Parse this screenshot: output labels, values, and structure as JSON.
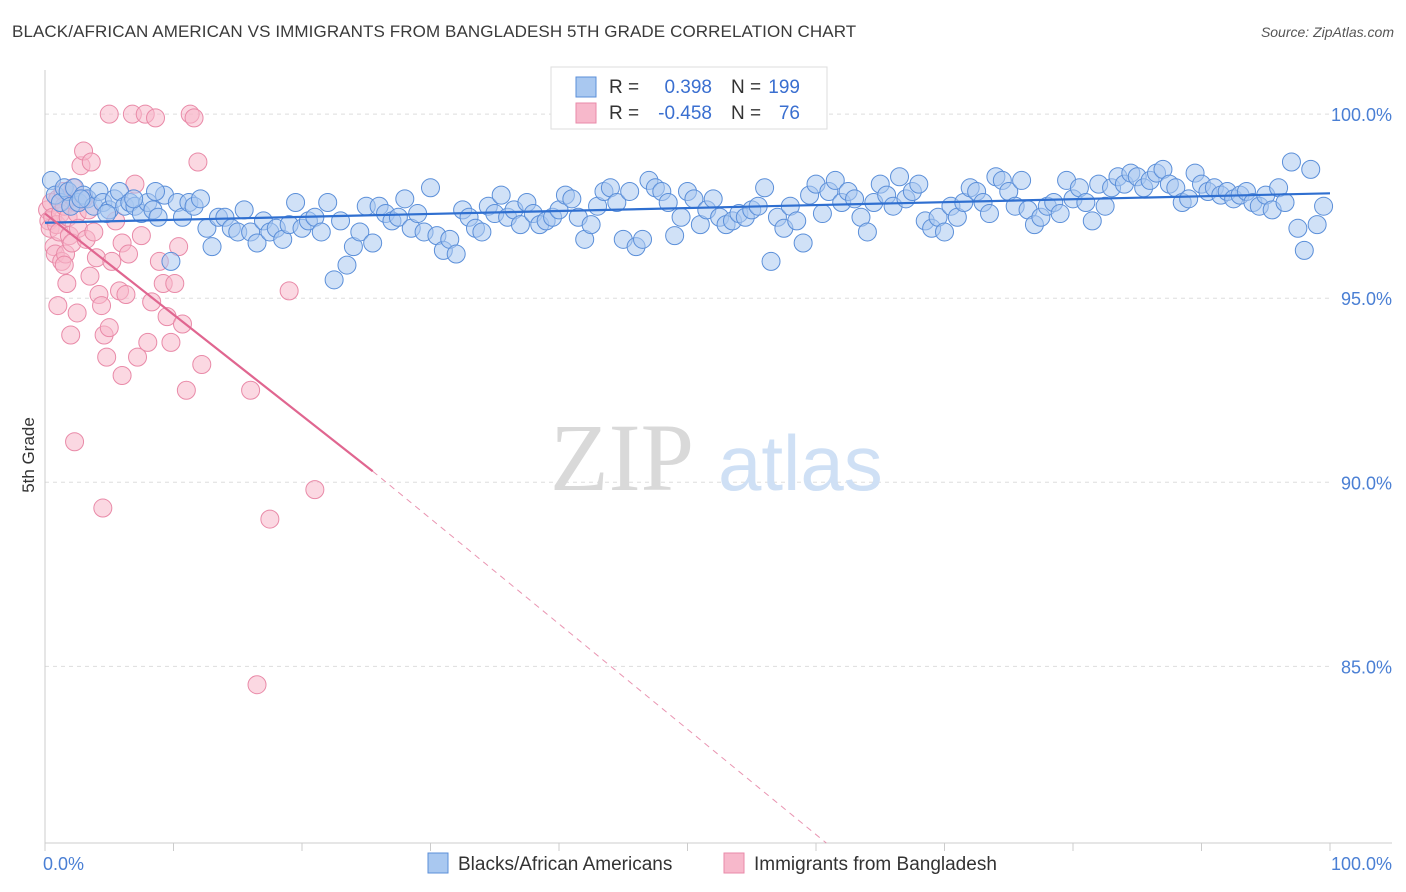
{
  "title": "BLACK/AFRICAN AMERICAN VS IMMIGRANTS FROM BANGLADESH 5TH GRADE CORRELATION CHART",
  "source": "Source: ZipAtlas.com",
  "watermark": {
    "zip": "ZIP",
    "atlas": "atlas"
  },
  "colors": {
    "blue_fill": "#a9c8f0",
    "blue_stroke": "#5b8fd9",
    "blue_line": "#2f6fd0",
    "pink_fill": "#f7b8cb",
    "pink_stroke": "#e98aa8",
    "pink_line": "#e06690",
    "axis_text": "#4a7fd4",
    "grid": "#dddddd"
  },
  "chart_data": {
    "type": "scatter",
    "xlabel": "",
    "ylabel": "5th Grade",
    "xlim": [
      0,
      100
    ],
    "ylim": [
      80.2,
      101.2
    ],
    "x_tick_labels": [
      "0.0%",
      "100.0%"
    ],
    "y_ticks": [
      {
        "value": 100,
        "label": "100.0%"
      },
      {
        "value": 95,
        "label": "95.0%"
      },
      {
        "value": 90,
        "label": "90.0%"
      },
      {
        "value": 85,
        "label": "85.0%"
      }
    ],
    "grid": true,
    "legend_top": [
      {
        "r_label": "R =",
        "r_value": "0.398",
        "n_label": "N =",
        "n_value": "199"
      },
      {
        "r_label": "R =",
        "r_value": "-0.458",
        "n_label": "N =",
        "n_value": "76"
      }
    ],
    "legend_bottom": [
      "Blacks/African Americans",
      "Immigrants from Bangladesh"
    ],
    "series": [
      {
        "name": "Blacks/African Americans",
        "trend": {
          "x": [
            0,
            100
          ],
          "y": [
            97.05,
            97.85
          ]
        },
        "points": [
          [
            0.5,
            98.2
          ],
          [
            0.8,
            97.8
          ],
          [
            1.2,
            97.6
          ],
          [
            1.5,
            98.0
          ],
          [
            1.8,
            97.9
          ],
          [
            2.0,
            97.5
          ],
          [
            2.3,
            98.0
          ],
          [
            2.6,
            97.6
          ],
          [
            3.0,
            97.8
          ],
          [
            3.3,
            97.7
          ],
          [
            3.8,
            97.5
          ],
          [
            4.2,
            97.9
          ],
          [
            4.5,
            97.6
          ],
          [
            5.0,
            97.4
          ],
          [
            5.4,
            97.7
          ],
          [
            5.8,
            97.9
          ],
          [
            6.2,
            97.5
          ],
          [
            6.6,
            97.6
          ],
          [
            7.0,
            97.5
          ],
          [
            7.5,
            97.3
          ],
          [
            8.0,
            97.6
          ],
          [
            8.4,
            97.4
          ],
          [
            8.8,
            97.2
          ],
          [
            9.3,
            97.8
          ],
          [
            9.8,
            96.0
          ],
          [
            10.3,
            97.6
          ],
          [
            10.7,
            97.2
          ],
          [
            11.2,
            97.6
          ],
          [
            11.6,
            97.5
          ],
          [
            12.1,
            97.7
          ],
          [
            12.6,
            96.9
          ],
          [
            13.0,
            96.4
          ],
          [
            13.5,
            97.2
          ],
          [
            14.0,
            97.2
          ],
          [
            14.5,
            96.9
          ],
          [
            15.0,
            96.8
          ],
          [
            15.5,
            97.4
          ],
          [
            16.0,
            96.8
          ],
          [
            16.5,
            96.5
          ],
          [
            17.0,
            97.1
          ],
          [
            17.5,
            96.8
          ],
          [
            18.0,
            96.9
          ],
          [
            18.5,
            96.6
          ],
          [
            19.0,
            97.0
          ],
          [
            19.5,
            97.6
          ],
          [
            20.0,
            96.9
          ],
          [
            20.5,
            97.1
          ],
          [
            21.0,
            97.2
          ],
          [
            21.5,
            96.8
          ],
          [
            22.0,
            97.6
          ],
          [
            22.5,
            95.5
          ],
          [
            23.0,
            97.1
          ],
          [
            23.5,
            95.9
          ],
          [
            24.0,
            96.4
          ],
          [
            24.5,
            96.8
          ],
          [
            25.0,
            97.5
          ],
          [
            25.5,
            96.5
          ],
          [
            26.0,
            97.5
          ],
          [
            26.5,
            97.3
          ],
          [
            27.0,
            97.1
          ],
          [
            27.5,
            97.2
          ],
          [
            28.0,
            97.7
          ],
          [
            28.5,
            96.9
          ],
          [
            29.0,
            97.3
          ],
          [
            29.5,
            96.8
          ],
          [
            30.0,
            98.0
          ],
          [
            30.5,
            96.7
          ],
          [
            31.0,
            96.3
          ],
          [
            31.5,
            96.6
          ],
          [
            32.0,
            96.2
          ],
          [
            32.5,
            97.4
          ],
          [
            33.0,
            97.2
          ],
          [
            33.5,
            96.9
          ],
          [
            34.0,
            96.8
          ],
          [
            34.5,
            97.5
          ],
          [
            35.0,
            97.3
          ],
          [
            35.5,
            97.8
          ],
          [
            36.0,
            97.2
          ],
          [
            36.5,
            97.4
          ],
          [
            37.0,
            97.0
          ],
          [
            37.5,
            97.6
          ],
          [
            38.0,
            97.3
          ],
          [
            38.5,
            97.0
          ],
          [
            39.0,
            97.1
          ],
          [
            39.5,
            97.2
          ],
          [
            40.0,
            97.4
          ],
          [
            40.5,
            97.8
          ],
          [
            41.0,
            97.7
          ],
          [
            41.5,
            97.2
          ],
          [
            42.0,
            96.6
          ],
          [
            42.5,
            97.0
          ],
          [
            43.0,
            97.5
          ],
          [
            43.5,
            97.9
          ],
          [
            44.0,
            98.0
          ],
          [
            44.5,
            97.6
          ],
          [
            45.0,
            96.6
          ],
          [
            45.5,
            97.9
          ],
          [
            46.0,
            96.4
          ],
          [
            46.5,
            96.6
          ],
          [
            47.0,
            98.2
          ],
          [
            47.5,
            98.0
          ],
          [
            48.0,
            97.9
          ],
          [
            48.5,
            97.6
          ],
          [
            49.0,
            96.7
          ],
          [
            49.5,
            97.2
          ],
          [
            50.0,
            97.9
          ],
          [
            50.5,
            97.7
          ],
          [
            51.0,
            97.0
          ],
          [
            51.5,
            97.4
          ],
          [
            52.0,
            97.7
          ],
          [
            52.5,
            97.2
          ],
          [
            53.0,
            97.0
          ],
          [
            53.5,
            97.1
          ],
          [
            54.0,
            97.3
          ],
          [
            54.5,
            97.2
          ],
          [
            55.0,
            97.4
          ],
          [
            55.5,
            97.5
          ],
          [
            56.0,
            98.0
          ],
          [
            56.5,
            96.0
          ],
          [
            57.0,
            97.2
          ],
          [
            57.5,
            96.9
          ],
          [
            58.0,
            97.5
          ],
          [
            58.5,
            97.1
          ],
          [
            59.0,
            96.5
          ],
          [
            59.5,
            97.8
          ],
          [
            60.0,
            98.1
          ],
          [
            60.5,
            97.3
          ],
          [
            61.0,
            97.9
          ],
          [
            61.5,
            98.2
          ],
          [
            62.0,
            97.6
          ],
          [
            62.5,
            97.9
          ],
          [
            63.0,
            97.7
          ],
          [
            63.5,
            97.2
          ],
          [
            64.0,
            96.8
          ],
          [
            64.5,
            97.6
          ],
          [
            65.0,
            98.1
          ],
          [
            65.5,
            97.8
          ],
          [
            66.0,
            97.5
          ],
          [
            66.5,
            98.3
          ],
          [
            67.0,
            97.7
          ],
          [
            67.5,
            97.9
          ],
          [
            68.0,
            98.1
          ],
          [
            68.5,
            97.1
          ],
          [
            69.0,
            96.9
          ],
          [
            69.5,
            97.2
          ],
          [
            70.0,
            96.8
          ],
          [
            70.5,
            97.5
          ],
          [
            71.0,
            97.2
          ],
          [
            71.5,
            97.6
          ],
          [
            72.0,
            98.0
          ],
          [
            72.5,
            97.9
          ],
          [
            73.0,
            97.6
          ],
          [
            73.5,
            97.3
          ],
          [
            74.0,
            98.3
          ],
          [
            74.5,
            98.2
          ],
          [
            75.0,
            97.9
          ],
          [
            75.5,
            97.5
          ],
          [
            76.0,
            98.2
          ],
          [
            76.5,
            97.4
          ],
          [
            77.0,
            97.0
          ],
          [
            77.5,
            97.2
          ],
          [
            78.0,
            97.5
          ],
          [
            78.5,
            97.6
          ],
          [
            79.0,
            97.3
          ],
          [
            79.5,
            98.2
          ],
          [
            80.0,
            97.7
          ],
          [
            80.5,
            98.0
          ],
          [
            81.0,
            97.6
          ],
          [
            81.5,
            97.1
          ],
          [
            82.0,
            98.1
          ],
          [
            82.5,
            97.5
          ],
          [
            83.0,
            98.0
          ],
          [
            83.5,
            98.3
          ],
          [
            84.0,
            98.1
          ],
          [
            84.5,
            98.4
          ],
          [
            85.0,
            98.3
          ],
          [
            85.5,
            98.0
          ],
          [
            86.0,
            98.2
          ],
          [
            86.5,
            98.4
          ],
          [
            87.0,
            98.5
          ],
          [
            87.5,
            98.1
          ],
          [
            88.0,
            98.0
          ],
          [
            88.5,
            97.6
          ],
          [
            89.0,
            97.7
          ],
          [
            89.5,
            98.4
          ],
          [
            90.0,
            98.1
          ],
          [
            90.5,
            97.9
          ],
          [
            91.0,
            98.0
          ],
          [
            91.5,
            97.8
          ],
          [
            92.0,
            97.9
          ],
          [
            92.5,
            97.7
          ],
          [
            93.0,
            97.8
          ],
          [
            93.5,
            97.9
          ],
          [
            94.0,
            97.6
          ],
          [
            94.5,
            97.5
          ],
          [
            95.0,
            97.8
          ],
          [
            95.5,
            97.4
          ],
          [
            96.0,
            98.0
          ],
          [
            96.5,
            97.6
          ],
          [
            97.0,
            98.7
          ],
          [
            97.5,
            96.9
          ],
          [
            98.0,
            96.3
          ],
          [
            98.5,
            98.5
          ],
          [
            99.0,
            97.0
          ],
          [
            99.5,
            97.5
          ],
          [
            2.8,
            97.7
          ],
          [
            4.8,
            97.3
          ],
          [
            6.9,
            97.7
          ],
          [
            8.6,
            97.9
          ]
        ]
      },
      {
        "name": "Immigrants from Bangladesh",
        "trend": {
          "x": [
            0,
            25.5
          ],
          "y": [
            97.3,
            90.3
          ]
        },
        "trend_dashed": {
          "x": [
            25.5,
            60.8
          ],
          "y": [
            90.3,
            80.2
          ]
        },
        "points": [
          [
            0.2,
            97.4
          ],
          [
            0.3,
            97.1
          ],
          [
            0.4,
            96.9
          ],
          [
            0.5,
            97.6
          ],
          [
            0.6,
            97.2
          ],
          [
            0.7,
            96.4
          ],
          [
            0.8,
            96.2
          ],
          [
            0.9,
            97.0
          ],
          [
            1.0,
            97.7
          ],
          [
            1.1,
            96.8
          ],
          [
            1.2,
            97.3
          ],
          [
            1.3,
            96.0
          ],
          [
            1.4,
            97.9
          ],
          [
            1.5,
            97.5
          ],
          [
            1.6,
            96.2
          ],
          [
            1.7,
            95.4
          ],
          [
            1.8,
            97.2
          ],
          [
            1.9,
            96.7
          ],
          [
            2.0,
            97.8
          ],
          [
            2.1,
            96.5
          ],
          [
            2.2,
            98.0
          ],
          [
            2.4,
            97.6
          ],
          [
            2.5,
            97.3
          ],
          [
            2.6,
            96.9
          ],
          [
            2.8,
            98.6
          ],
          [
            3.0,
            99.0
          ],
          [
            3.2,
            96.6
          ],
          [
            3.4,
            97.4
          ],
          [
            3.6,
            98.7
          ],
          [
            3.8,
            96.8
          ],
          [
            4.0,
            96.1
          ],
          [
            4.2,
            95.1
          ],
          [
            4.4,
            94.8
          ],
          [
            4.6,
            94.0
          ],
          [
            4.8,
            93.4
          ],
          [
            5.0,
            94.2
          ],
          [
            5.2,
            96.0
          ],
          [
            5.5,
            97.1
          ],
          [
            5.8,
            95.2
          ],
          [
            6.0,
            96.5
          ],
          [
            6.3,
            95.1
          ],
          [
            6.5,
            96.2
          ],
          [
            6.8,
            100.0
          ],
          [
            7.2,
            93.4
          ],
          [
            7.5,
            96.7
          ],
          [
            7.8,
            100.0
          ],
          [
            8.0,
            93.8
          ],
          [
            8.3,
            94.9
          ],
          [
            8.6,
            99.9
          ],
          [
            8.9,
            96.0
          ],
          [
            9.2,
            95.4
          ],
          [
            9.5,
            94.5
          ],
          [
            9.8,
            93.8
          ],
          [
            10.1,
            95.4
          ],
          [
            10.4,
            96.4
          ],
          [
            10.7,
            94.3
          ],
          [
            11.0,
            92.5
          ],
          [
            11.3,
            100.0
          ],
          [
            11.6,
            99.9
          ],
          [
            11.9,
            98.7
          ],
          [
            12.2,
            93.2
          ],
          [
            1.0,
            94.8
          ],
          [
            1.5,
            95.9
          ],
          [
            2.0,
            94.0
          ],
          [
            2.3,
            91.1
          ],
          [
            2.5,
            94.6
          ],
          [
            3.0,
            97.7
          ],
          [
            3.5,
            95.6
          ],
          [
            4.5,
            89.3
          ],
          [
            5.0,
            100.0
          ],
          [
            6.0,
            92.9
          ],
          [
            7.0,
            98.1
          ],
          [
            16.0,
            92.5
          ],
          [
            17.5,
            89.0
          ],
          [
            19.0,
            95.2
          ],
          [
            21.0,
            89.8
          ],
          [
            16.5,
            84.5
          ]
        ]
      }
    ]
  },
  "legend_bottom_items": [
    "Blacks/African Americans",
    "Immigrants from Bangladesh"
  ]
}
